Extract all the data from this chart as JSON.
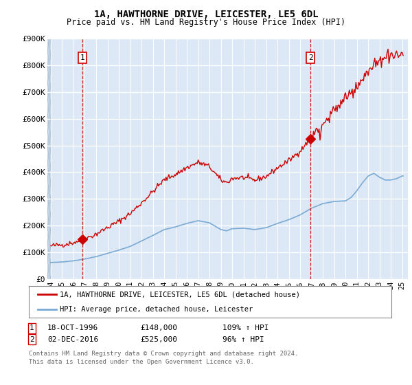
{
  "title1": "1A, HAWTHORNE DRIVE, LEICESTER, LE5 6DL",
  "title2": "Price paid vs. HM Land Registry's House Price Index (HPI)",
  "ylim": [
    0,
    900000
  ],
  "yticks": [
    0,
    100000,
    200000,
    300000,
    400000,
    500000,
    600000,
    700000,
    800000,
    900000
  ],
  "ytick_labels": [
    "£0",
    "£100K",
    "£200K",
    "£300K",
    "£400K",
    "£500K",
    "£600K",
    "£700K",
    "£800K",
    "£900K"
  ],
  "hpi_color": "#7aaad4",
  "price_color": "#cc0000",
  "bg_color": "#dce8f5",
  "hatch_bg": "#c5d9ec",
  "grid_color": "#ffffff",
  "legend_label_price": "1A, HAWTHORNE DRIVE, LEICESTER, LE5 6DL (detached house)",
  "legend_label_hpi": "HPI: Average price, detached house, Leicester",
  "sale1_x": 1996.8,
  "sale1_y": 148000,
  "sale1_label": "1",
  "sale2_x": 2016.9,
  "sale2_y": 525000,
  "sale2_label": "2",
  "xlim_left": 1993.7,
  "xlim_right": 2025.5,
  "footnote3": "Contains HM Land Registry data © Crown copyright and database right 2024.",
  "footnote4": "This data is licensed under the Open Government Licence v3.0."
}
